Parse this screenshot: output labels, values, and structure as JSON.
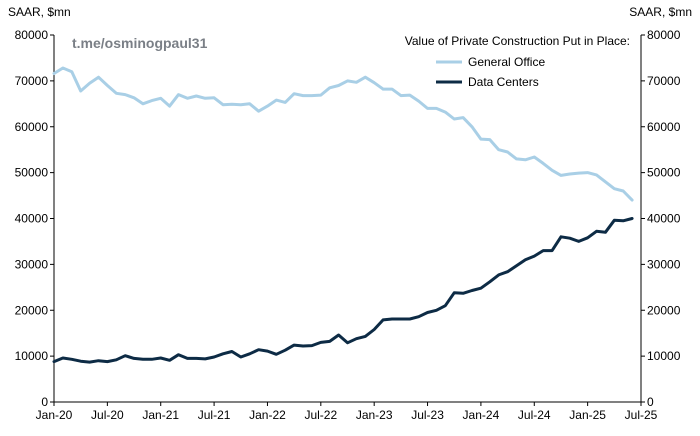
{
  "watermark": "t.me/osminogpaul31",
  "colors": {
    "general_office": "#a9cfe6",
    "data_centers": "#0d2b45",
    "axis": "#000000"
  },
  "chart_data": {
    "type": "line",
    "title": "Value of Private Construction Put in Place:",
    "ylabel_left": "SAAR, $mn",
    "ylabel_right": "SAAR, $mn",
    "ylim": [
      0,
      80000
    ],
    "yticks": [
      0,
      10000,
      20000,
      30000,
      40000,
      50000,
      60000,
      70000,
      80000
    ],
    "ytick_labels": [
      "0",
      "10000",
      "20000",
      "30000",
      "40000",
      "50000",
      "60000",
      "70000",
      "80000"
    ],
    "x_tick_months": [
      0,
      6,
      12,
      18,
      24,
      30,
      36,
      42,
      48,
      54,
      60,
      66
    ],
    "x_tick_labels": [
      "Jan-20",
      "Jul-20",
      "Jan-21",
      "Jul-21",
      "Jan-22",
      "Jul-22",
      "Jan-23",
      "Jul-23",
      "Jan-24",
      "Jul-24",
      "Jan-25",
      "Jul-25"
    ],
    "x_unit": "months since Jan-2020",
    "legend": [
      "General Office",
      "Data Centers"
    ],
    "legend_position": "top-right",
    "series": [
      {
        "name": "General Office",
        "x": [
          0,
          1,
          2,
          3,
          4,
          5,
          6,
          7,
          8,
          9,
          10,
          11,
          12,
          13,
          14,
          15,
          16,
          17,
          18,
          19,
          20,
          21,
          22,
          23,
          24,
          25,
          26,
          27,
          28,
          29,
          30,
          31,
          32,
          33,
          34,
          35,
          36,
          37,
          38,
          39,
          40,
          41,
          42,
          43,
          44,
          45,
          46,
          47,
          48,
          49,
          50,
          51,
          52,
          53,
          54,
          55,
          56,
          57,
          58,
          59,
          60,
          61,
          62,
          63,
          64,
          65
        ],
        "values": [
          71600,
          72800,
          72000,
          67800,
          69500,
          70800,
          69000,
          67300,
          67000,
          66300,
          65000,
          65700,
          66200,
          64500,
          67000,
          66200,
          66700,
          66200,
          66300,
          64800,
          64900,
          64800,
          65000,
          63400,
          64500,
          65800,
          65300,
          67200,
          66800,
          66800,
          66900,
          68500,
          69000,
          70000,
          69700,
          70800,
          69600,
          68200,
          68200,
          66800,
          66900,
          65600,
          64000,
          64000,
          63200,
          61700,
          62000,
          60000,
          57300,
          57200,
          55000,
          54500,
          53000,
          52800,
          53400,
          52000,
          50500,
          49400,
          49700,
          49900,
          50000,
          49500,
          48000,
          46500,
          46000,
          44000
        ]
      },
      {
        "name": "Data Centers",
        "x": [
          0,
          1,
          2,
          3,
          4,
          5,
          6,
          7,
          8,
          9,
          10,
          11,
          12,
          13,
          14,
          15,
          16,
          17,
          18,
          19,
          20,
          21,
          22,
          23,
          24,
          25,
          26,
          27,
          28,
          29,
          30,
          31,
          32,
          33,
          34,
          35,
          36,
          37,
          38,
          39,
          40,
          41,
          42,
          43,
          44,
          45,
          46,
          47,
          48,
          49,
          50,
          51,
          52,
          53,
          54,
          55,
          56,
          57,
          58,
          59,
          60,
          61,
          62,
          63,
          64,
          65
        ],
        "values": [
          8800,
          9600,
          9300,
          8900,
          8700,
          9000,
          8800,
          9200,
          10100,
          9500,
          9300,
          9300,
          9600,
          9100,
          10300,
          9500,
          9500,
          9400,
          9800,
          10500,
          11000,
          9800,
          10500,
          11400,
          11100,
          10400,
          11300,
          12400,
          12200,
          12300,
          13000,
          13200,
          14600,
          12900,
          13800,
          14300,
          15800,
          17900,
          18100,
          18100,
          18100,
          18600,
          19500,
          20000,
          21000,
          23800,
          23700,
          24300,
          24800,
          26200,
          27700,
          28400,
          29700,
          31000,
          31800,
          33000,
          33000,
          36000,
          35700,
          35000,
          35800,
          37200,
          37000,
          39600,
          39500,
          40000
        ]
      }
    ]
  }
}
